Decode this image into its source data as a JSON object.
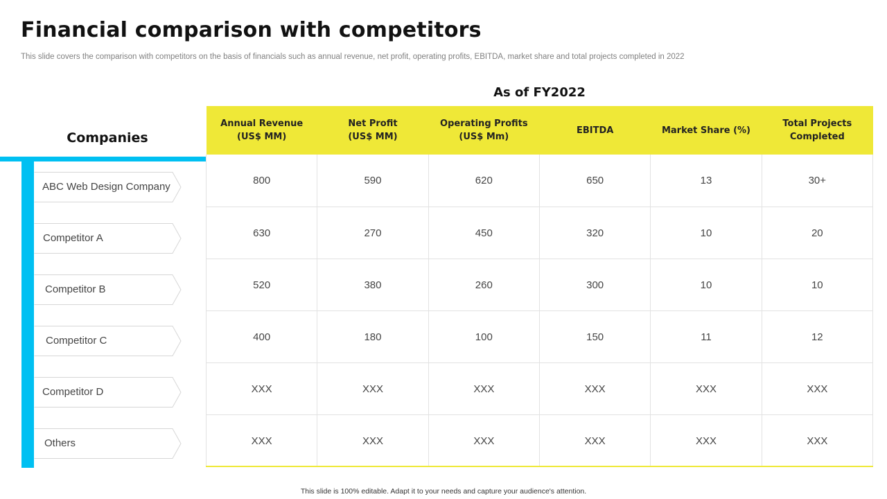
{
  "slide": {
    "title": "Financial comparison with competitors",
    "subtitle": "This slide covers the comparison with competitors on the basis of financials such as annual revenue, net profit, operating profits, EBITDA,  market share and total projects completed in 2022",
    "period_label": "As of  FY2022",
    "companies_header": "Companies",
    "footer": "This slide is 100% editable. Adapt it to your needs and capture your audience's attention."
  },
  "colors": {
    "accent_cyan": "#00C0F2",
    "header_yellow": "#EFE837"
  },
  "table": {
    "columns": [
      {
        "line1": "Annual Revenue",
        "line2": "(US$ MM)"
      },
      {
        "line1": "Net Profit",
        "line2": "(US$ MM)"
      },
      {
        "line1": "Operating Profits",
        "line2": "(US$ Mm)"
      },
      {
        "line1": "EBITDA",
        "line2": ""
      },
      {
        "line1": "Market Share (%)",
        "line2": ""
      },
      {
        "line1": "Total Projects",
        "line2": "Completed"
      }
    ],
    "rows": [
      {
        "company": "ABC Web Design Company",
        "values": [
          "800",
          "590",
          "620",
          "650",
          "13",
          "30+"
        ]
      },
      {
        "company": "Competitor  A",
        "values": [
          "630",
          "270",
          "450",
          "320",
          "10",
          "20"
        ]
      },
      {
        "company": "Competitor B",
        "values": [
          "520",
          "380",
          "260",
          "300",
          "10",
          "10"
        ]
      },
      {
        "company": "Competitor C",
        "values": [
          "400",
          "180",
          "100",
          "150",
          "11",
          "12"
        ]
      },
      {
        "company": "Competitor D",
        "values": [
          "XXX",
          "XXX",
          "XXX",
          "XXX",
          "XXX",
          "XXX"
        ]
      },
      {
        "company": "Others",
        "values": [
          "XXX",
          "XXX",
          "XXX",
          "XXX",
          "XXX",
          "XXX"
        ]
      }
    ]
  }
}
